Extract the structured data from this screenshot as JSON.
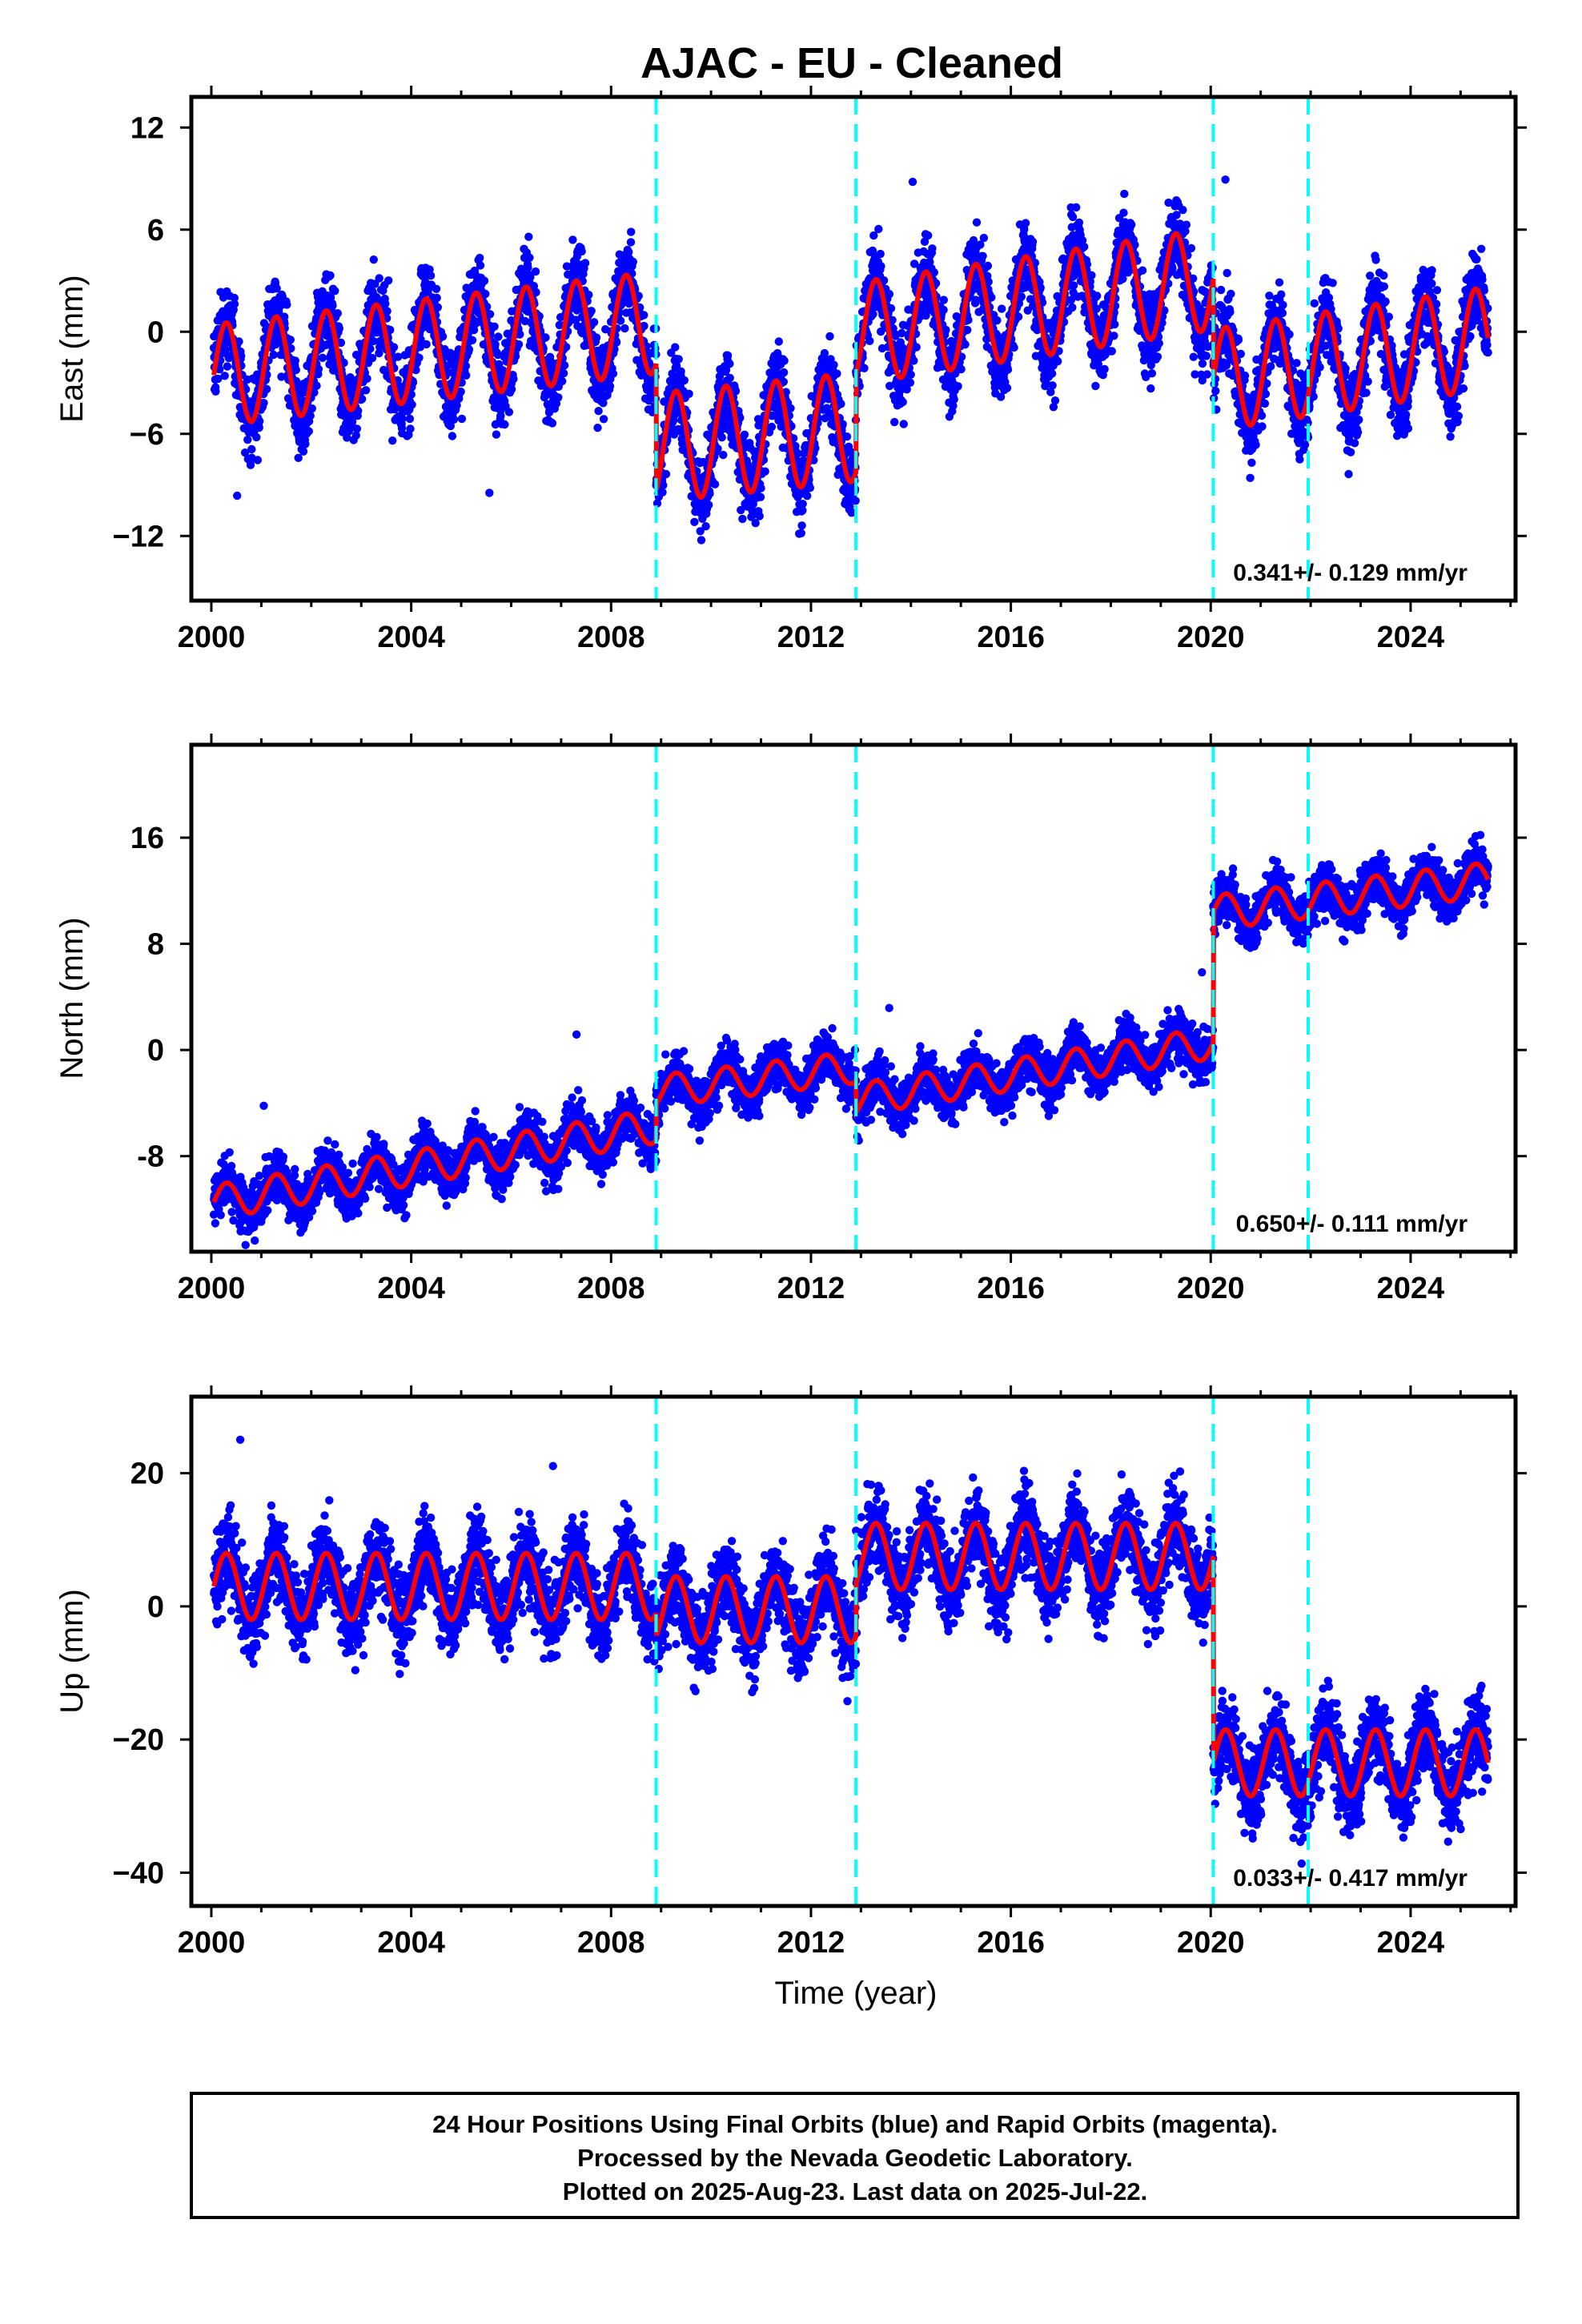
{
  "title": "AJAC  - EU - Cleaned",
  "x_axis_label": "Time (year)",
  "colors": {
    "points": "#0000ff",
    "model": "#ff0000",
    "breaks": "#00ffff",
    "frame": "#000000"
  },
  "footer": {
    "line1": "24 Hour Positions Using Final Orbits (blue) and Rapid Orbits (magenta).",
    "line2": "Processed by the Nevada Geodetic Laboratory.",
    "line3": "Plotted on 2025-Aug-23. Last data on 2025-Jul-22."
  },
  "chart_data": [
    {
      "type": "scatter",
      "component": "east",
      "ylabel": "East (mm)",
      "xlim": [
        1999.6,
        2026.1
      ],
      "ylim": [
        -15.8,
        13.8
      ],
      "xticks": [
        2000,
        2004,
        2008,
        2012,
        2016,
        2020,
        2024
      ],
      "yticks": [
        -12,
        -6,
        0,
        6,
        12
      ],
      "yticklabels": [
        "−12",
        "−6",
        "0",
        "6",
        "12"
      ],
      "rate_text": "0.341+/- 0.129 mm/yr",
      "breaks": [
        2008.9,
        2012.9,
        2020.05,
        2021.95
      ],
      "model_segments": [
        {
          "x0": 2000.05,
          "x1": 2008.9,
          "offset": -1.0,
          "trend": 0.35,
          "amp": 3.0
        },
        {
          "x0": 2008.9,
          "x1": 2012.9,
          "offset": -6.2,
          "trend": 0.3,
          "amp": 3.2
        },
        {
          "x0": 2012.9,
          "x1": 2020.05,
          "offset": 1.5,
          "trend": 0.45,
          "amp": 3.0
        },
        {
          "x0": 2020.05,
          "x1": 2025.55,
          "offset": -1.6,
          "trend": 0.45,
          "amp": 3.0
        }
      ],
      "scatter_sigma": 1.7,
      "series": [
        {
          "name": "Final Orbits",
          "points": "daily positions 2000.05–2025.55"
        }
      ]
    },
    {
      "type": "scatter",
      "component": "north",
      "ylabel": "North (mm)",
      "xlim": [
        1999.6,
        2026.1
      ],
      "ylim": [
        -15.2,
        23.0
      ],
      "xticks": [
        2000,
        2004,
        2008,
        2012,
        2016,
        2020,
        2024
      ],
      "yticks": [
        -8,
        0,
        8,
        16
      ],
      "yticklabels": [
        "-8",
        "0",
        "8",
        "16"
      ],
      "rate_text": "0.650+/- 0.111 mm/yr",
      "breaks": [
        2008.9,
        2012.9,
        2020.05,
        2021.95
      ],
      "model_segments": [
        {
          "x0": 2000.05,
          "x1": 2008.9,
          "offset": -8.6,
          "trend": 0.65,
          "amp": 1.3
        },
        {
          "x0": 2008.9,
          "x1": 2012.9,
          "offset": -2.2,
          "trend": 0.45,
          "amp": 1.2
        },
        {
          "x0": 2012.9,
          "x1": 2020.05,
          "offset": -1.6,
          "trend": 0.6,
          "amp": 1.2
        },
        {
          "x0": 2020.05,
          "x1": 2025.55,
          "offset": 11.6,
          "trend": 0.45,
          "amp": 1.3
        }
      ],
      "scatter_sigma": 1.3,
      "series": [
        {
          "name": "Final Orbits",
          "points": "daily positions 2000.05–2025.55"
        }
      ]
    },
    {
      "type": "scatter",
      "component": "up",
      "ylabel": "Up (mm)",
      "xlim": [
        1999.6,
        2026.1
      ],
      "ylim": [
        -45.0,
        31.5
      ],
      "xticks": [
        2000,
        2004,
        2008,
        2012,
        2016,
        2020,
        2024
      ],
      "yticks": [
        -40,
        -20,
        0,
        20
      ],
      "yticklabels": [
        "−40",
        "−20",
        "0",
        "20"
      ],
      "rate_text": "0.033+/- 0.417 mm/yr",
      "breaks": [
        2008.9,
        2012.9,
        2020.05,
        2021.95
      ],
      "model_segments": [
        {
          "x0": 2000.05,
          "x1": 2008.9,
          "offset": 3.0,
          "trend": 0.0,
          "amp": 5.0
        },
        {
          "x0": 2008.9,
          "x1": 2012.9,
          "offset": -0.5,
          "trend": 0.0,
          "amp": 5.0
        },
        {
          "x0": 2012.9,
          "x1": 2020.05,
          "offset": 7.5,
          "trend": 0.0,
          "amp": 5.0
        },
        {
          "x0": 2020.05,
          "x1": 2025.55,
          "offset": -23.5,
          "trend": 0.0,
          "amp": 5.0
        }
      ],
      "scatter_sigma": 4.5,
      "series": [
        {
          "name": "Final Orbits",
          "points": "daily positions 2000.05–2025.55"
        }
      ]
    }
  ]
}
